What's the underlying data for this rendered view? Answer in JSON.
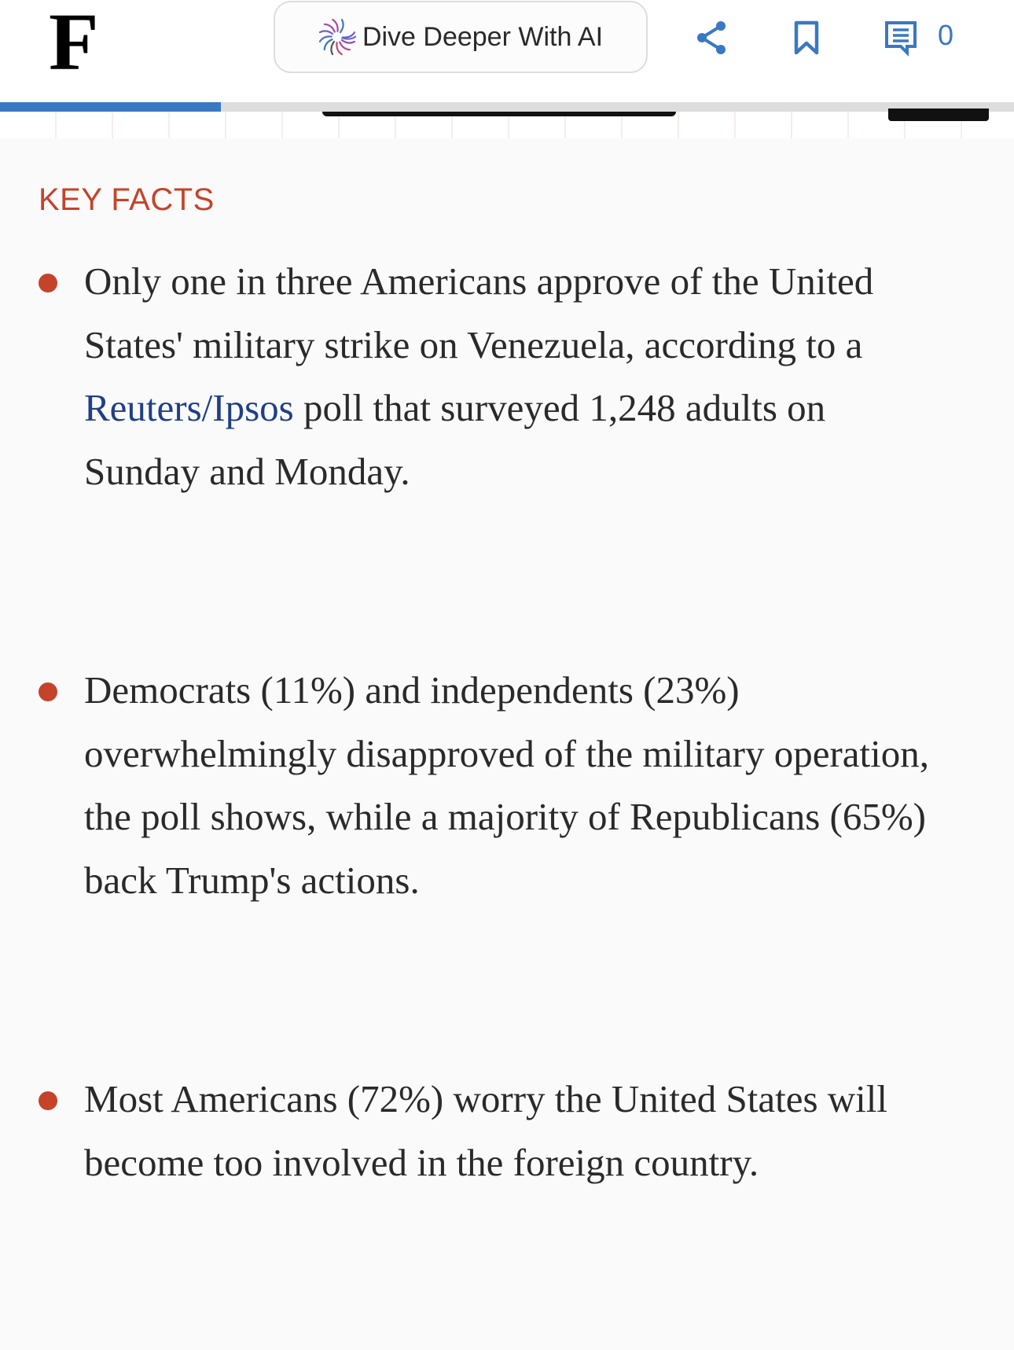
{
  "header": {
    "logo": "F",
    "ai_button_label": "Dive Deeper With AI",
    "comment_count": "0",
    "reading_progress_percent": 21.8,
    "accent_color": "#3a78c2"
  },
  "key_facts": {
    "heading": "KEY FACTS",
    "accent_color": "#c5432a",
    "items": [
      {
        "before": "Only one in three Americans approve of the United States' military strike on Venezuela, according to a ",
        "link": "Reuters/Ipsos",
        "after": " poll that surveyed 1,248 adults on Sunday and Monday."
      },
      {
        "before": "Democrats (11%) and independents (23%) overwhelmingly disapproved of the military operation, the poll shows, while a majority of Republicans (65%) back Trump's actions.",
        "link": "",
        "after": ""
      },
      {
        "before": "Most Americans (72%) worry the United States will become too involved in the foreign country.",
        "link": "",
        "after": ""
      }
    ]
  }
}
